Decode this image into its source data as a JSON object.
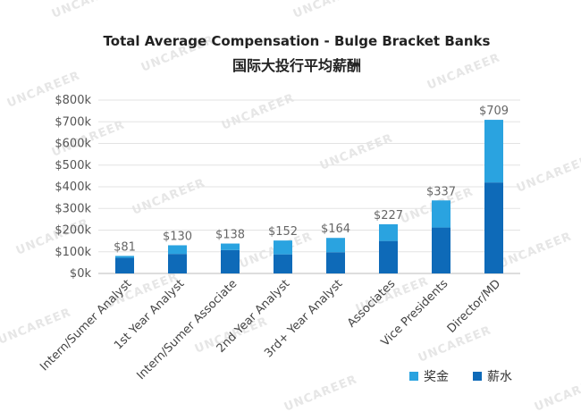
{
  "watermark": "UNCAREER",
  "chart_data": {
    "type": "bar",
    "stacked": true,
    "title": "Total Average Compensation - Bulge Bracket Banks",
    "subtitle": "国际大投行平均薪酬",
    "categories": [
      "Intern/Sumer Analyst",
      "1st Year Analyst",
      "Intern/Sumer Associate",
      "2nd Year Analyst",
      "3rd+ Year Analyst",
      "Associates",
      "Vice Presidents",
      "Director/MD"
    ],
    "series": [
      {
        "name": "薪水",
        "color": "#0e6ab8",
        "values": [
          72,
          90,
          108,
          88,
          98,
          150,
          212,
          420
        ]
      },
      {
        "name": "奖金",
        "color": "#2aa3e0",
        "values": [
          9,
          40,
          30,
          64,
          66,
          77,
          125,
          289
        ]
      }
    ],
    "totals": [
      "$81",
      "$130",
      "$138",
      "$152",
      "$164",
      "$227",
      "$337",
      "$709"
    ],
    "yticks": [
      "$0k",
      "$100k",
      "$200k",
      "$300k",
      "$400k",
      "$500k",
      "$600k",
      "$700k",
      "$800k"
    ],
    "ylim": [
      0,
      800
    ],
    "grid": true,
    "legend_position": "bottom-right",
    "legend": [
      {
        "label": "奖金",
        "color": "#2aa3e0"
      },
      {
        "label": "薪水",
        "color": "#0e6ab8"
      }
    ]
  }
}
